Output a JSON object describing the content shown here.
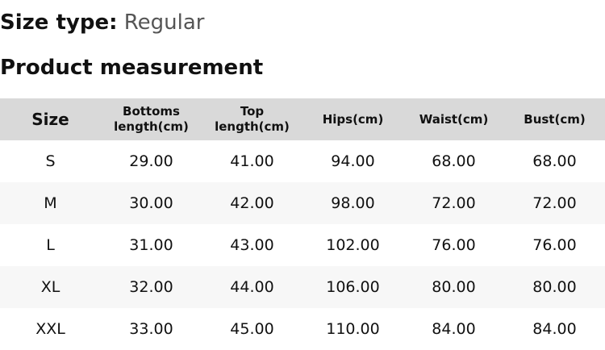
{
  "size_type": {
    "label": "Size type:",
    "value": "Regular"
  },
  "title": "Product measurement",
  "table": {
    "headers": [
      "Size",
      "Bottoms length(cm)",
      "Top length(cm)",
      "Hips(cm)",
      "Waist(cm)",
      "Bust(cm)"
    ],
    "rows": [
      [
        "S",
        "29.00",
        "41.00",
        "94.00",
        "68.00",
        "68.00"
      ],
      [
        "M",
        "30.00",
        "42.00",
        "98.00",
        "72.00",
        "72.00"
      ],
      [
        "L",
        "31.00",
        "43.00",
        "102.00",
        "76.00",
        "76.00"
      ],
      [
        "XL",
        "32.00",
        "44.00",
        "106.00",
        "80.00",
        "80.00"
      ],
      [
        "XXL",
        "33.00",
        "45.00",
        "110.00",
        "84.00",
        "84.00"
      ]
    ]
  }
}
